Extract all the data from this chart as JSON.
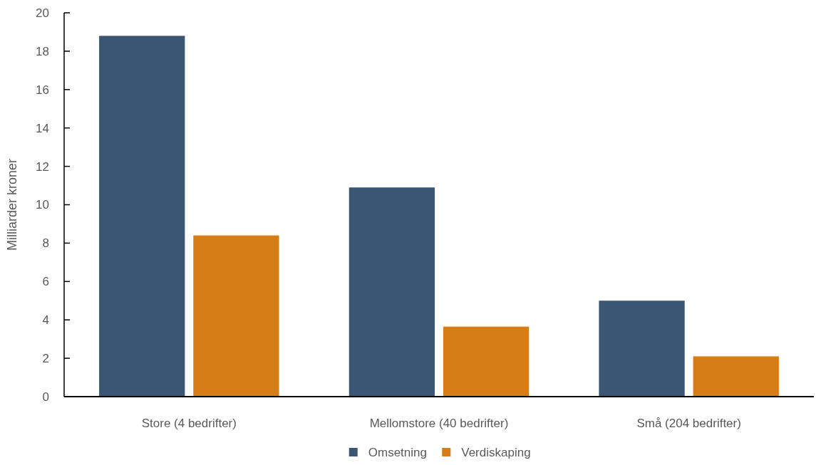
{
  "chart_data": {
    "type": "bar",
    "ylabel": "Milliarder kroner",
    "categories": [
      "Store (4 bedrifter)",
      "Mellomstore (40 bedrifter)",
      "Små (204 bedrifter)"
    ],
    "series": [
      {
        "name": "Omsetning",
        "color": "#3a5673",
        "values": [
          18.8,
          10.9,
          5.0
        ]
      },
      {
        "name": "Verdiskaping",
        "color": "#d67d17",
        "values": [
          8.4,
          3.65,
          2.1
        ]
      }
    ],
    "ylim": [
      0,
      20
    ],
    "yticks": [
      0,
      2,
      4,
      6,
      8,
      10,
      12,
      14,
      16,
      18,
      20
    ],
    "grid": false,
    "legend": "bottom"
  }
}
